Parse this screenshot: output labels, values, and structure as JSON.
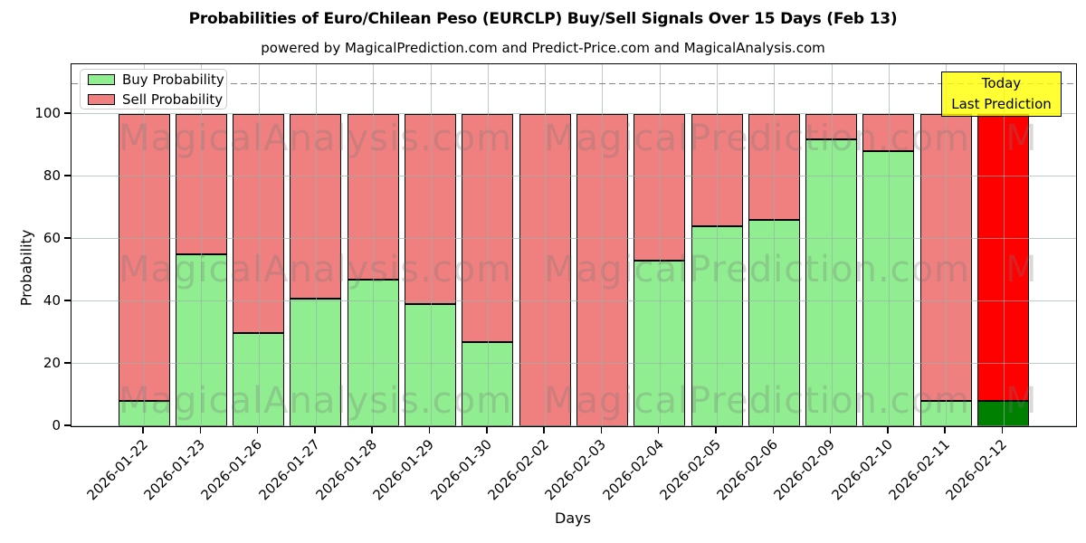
{
  "title": "Probabilities of Euro/Chilean Peso (EURCLP) Buy/Sell Signals Over 15 Days (Feb 13)",
  "subtitle": "powered by MagicalPrediction.com and Predict-Price.com and MagicalAnalysis.com",
  "axes": {
    "ylabel": "Probability",
    "xlabel": "Days",
    "yticks": [
      0,
      20,
      40,
      60,
      80,
      100
    ]
  },
  "legend": {
    "items": [
      {
        "label": "Buy Probability",
        "color": "#90EE90"
      },
      {
        "label": "Sell Probability",
        "color": "#F08080"
      }
    ]
  },
  "annotation_box": {
    "lines": [
      "Today",
      "Last Prediction"
    ],
    "bg_color": "#FFFF00"
  },
  "watermarks": {
    "left_text": "MagicalAnalysis.com",
    "right_text": "MagicalPrediction.com",
    "partial_text": "M"
  },
  "colors": {
    "buy": "#90EE90",
    "sell": "#F08080",
    "buy_today": "#008000",
    "sell_today": "#FF0000",
    "bar_edge": "#000000",
    "grid": "#b0b0b0",
    "dashed_line": "#878787",
    "annotation_bg": "#FFFF00"
  },
  "chart_data": {
    "type": "bar",
    "stacked": true,
    "title": "Probabilities of Euro/Chilean Peso (EURCLP) Buy/Sell Signals Over 15 Days (Feb 13)",
    "xlabel": "Days",
    "ylabel": "Probability",
    "ylim": [
      0,
      116
    ],
    "grid": true,
    "legend_position": "upper left",
    "dashed_line_y": 110,
    "categories": [
      "2026-01-22",
      "2026-01-23",
      "2026-01-26",
      "2026-01-27",
      "2026-01-28",
      "2026-01-29",
      "2026-01-30",
      "2026-02-02",
      "2026-02-03",
      "2026-02-04",
      "2026-02-05",
      "2026-02-06",
      "2026-02-09",
      "2026-02-10",
      "2026-02-11",
      "2026-02-12"
    ],
    "series": [
      {
        "name": "Buy Probability",
        "color": "#90EE90",
        "values": [
          8,
          55,
          30,
          41,
          47,
          39,
          27,
          0,
          0,
          53,
          64,
          66,
          92,
          88,
          8,
          8
        ]
      },
      {
        "name": "Sell Probability",
        "color": "#F08080",
        "values": [
          92,
          45,
          70,
          59,
          53,
          61,
          73,
          100,
          100,
          47,
          36,
          34,
          8,
          12,
          92,
          92
        ]
      }
    ],
    "today_index": 15,
    "today_colors": {
      "buy": "#008000",
      "sell": "#FF0000"
    }
  }
}
